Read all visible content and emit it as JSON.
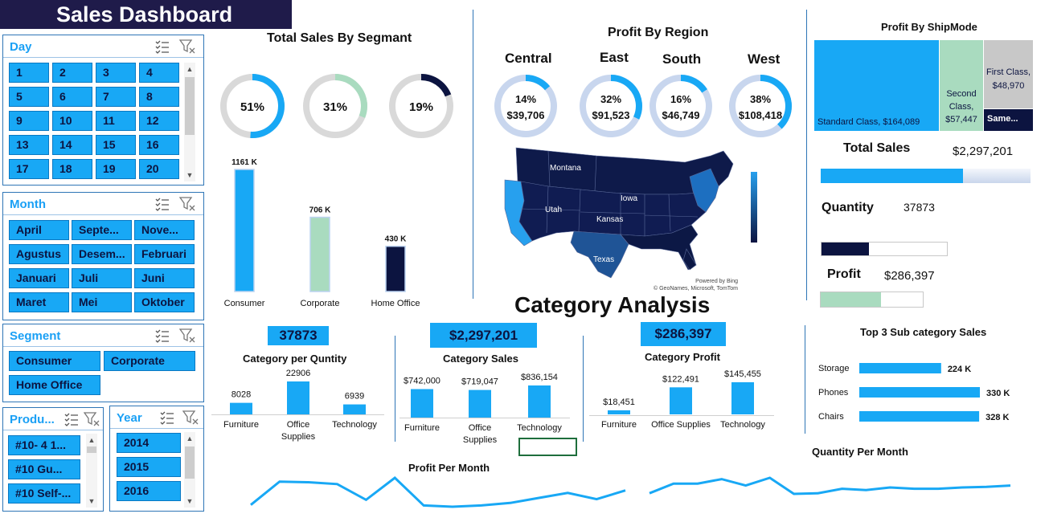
{
  "title": "Sales Dashboard",
  "slicers": {
    "day": {
      "title": "Day",
      "items": [
        "1",
        "2",
        "3",
        "4",
        "5",
        "6",
        "7",
        "8",
        "9",
        "10",
        "11",
        "12",
        "13",
        "14",
        "15",
        "16",
        "17",
        "18",
        "19",
        "20"
      ]
    },
    "month": {
      "title": "Month",
      "items": [
        "April",
        "Septe...",
        "Nove...",
        "Agustus",
        "Desem...",
        "Februari",
        "Januari",
        "Juli",
        "Juni",
        "Maret",
        "Mei",
        "Oktober"
      ]
    },
    "segment": {
      "title": "Segment",
      "items": [
        "Consumer",
        "Corporate",
        "Home Office"
      ]
    },
    "product": {
      "title": "Produ...",
      "items": [
        "#10- 4 1...",
        "#10 Gu...",
        "#10 Self-..."
      ]
    },
    "year": {
      "title": "Year",
      "items": [
        "2014",
        "2015",
        "2016"
      ]
    }
  },
  "segment_section": {
    "title": "Total Sales By Segmant",
    "donuts": [
      {
        "label": "51%",
        "value": 51,
        "color": "#18a8f5"
      },
      {
        "label": "31%",
        "value": 31,
        "color": "#a9dbbf"
      },
      {
        "label": "19%",
        "value": 19,
        "color": "#0c1440"
      }
    ]
  },
  "region_section": {
    "title": "Profit By Region",
    "regions": [
      {
        "name": "Central",
        "pct": "14%",
        "amount": "$39,706",
        "value": 14
      },
      {
        "name": "East",
        "pct": "32%",
        "amount": "$91,523",
        "value": 32
      },
      {
        "name": "South",
        "pct": "16%",
        "amount": "$46,749",
        "value": 16
      },
      {
        "name": "West",
        "pct": "38%",
        "amount": "$108,418",
        "value": 38
      }
    ],
    "map_labels": [
      "Montana",
      "Utah",
      "Iowa",
      "Kansas",
      "Texas"
    ],
    "map_credit_1": "Powered by Bing",
    "map_credit_2": "© GeoNames, Microsoft, TomTom"
  },
  "shipmode": {
    "title": "Profit By ShipMode",
    "tiles": [
      {
        "label": "Standard Class, $164,089",
        "value": 164089,
        "color": "#18a8f5"
      },
      {
        "label": "Second Class, $57,447",
        "value": 57447,
        "color": "#a9dbbf"
      },
      {
        "label": "First Class, $48,970",
        "value": 48970,
        "color": "#c8c8c8"
      },
      {
        "label": "Same...",
        "value": 15891,
        "color": "#0c1440"
      }
    ]
  },
  "kpis": {
    "total_sales": {
      "label": "Total Sales",
      "value": "$2,297,201",
      "fill": 0.68,
      "color": "#18a8f5"
    },
    "quantity": {
      "label": "Quantity",
      "value": "37873",
      "fill": 0.38,
      "color": "#0c1440"
    },
    "profit": {
      "label": "Profit",
      "value": "$286,397",
      "fill": 0.59,
      "color": "#a9dbbf"
    }
  },
  "category_title": "Category Analysis",
  "chart_data": [
    {
      "type": "bar",
      "title": "",
      "categories": [
        "Consumer",
        "Corporate",
        "Home Office"
      ],
      "values": [
        1161,
        706,
        430
      ],
      "data_labels": [
        "1161 K",
        "706 K",
        "430 K"
      ],
      "colors": [
        "#18a8f5",
        "#a9dbbf",
        "#0c1440"
      ]
    },
    {
      "type": "bar",
      "title": "Category  per Quntity",
      "kpi": "37873",
      "categories": [
        "Furniture",
        "Office Supplies",
        "Technology"
      ],
      "values": [
        8028,
        22906,
        6939
      ],
      "data_labels": [
        "8028",
        "22906",
        "6939"
      ]
    },
    {
      "type": "bar",
      "title": "Category  Sales",
      "kpi": "$2,297,201",
      "categories": [
        "Furniture",
        "Office Supplies",
        "Technology"
      ],
      "values": [
        742000,
        719047,
        836154
      ],
      "data_labels": [
        "$742,000",
        "$719,047",
        "$836,154"
      ]
    },
    {
      "type": "bar",
      "title": "Category  Profit",
      "kpi": "$286,397",
      "categories": [
        "Furniture",
        "Office Supplies",
        "Technology"
      ],
      "values": [
        18451,
        122491,
        145455
      ],
      "data_labels": [
        "$18,451",
        "$122,491",
        "$145,455"
      ]
    },
    {
      "type": "bar",
      "orientation": "horizontal",
      "title": "Top 3 Sub category Sales",
      "categories": [
        "Storage",
        "Phones",
        "Chairs"
      ],
      "values": [
        224,
        330,
        328
      ],
      "data_labels": [
        "224 K",
        "330 K",
        "328 K"
      ]
    },
    {
      "type": "line",
      "title": "Profit Per Month",
      "values": [
        5,
        42,
        41,
        38,
        13,
        48,
        4,
        2,
        4,
        8,
        16,
        24,
        14,
        28
      ]
    },
    {
      "type": "line",
      "title": "Quantity Per Month",
      "values": [
        18,
        33,
        33,
        40,
        30,
        42,
        17,
        18,
        25,
        23,
        27,
        25,
        25,
        27,
        28,
        30
      ]
    }
  ]
}
